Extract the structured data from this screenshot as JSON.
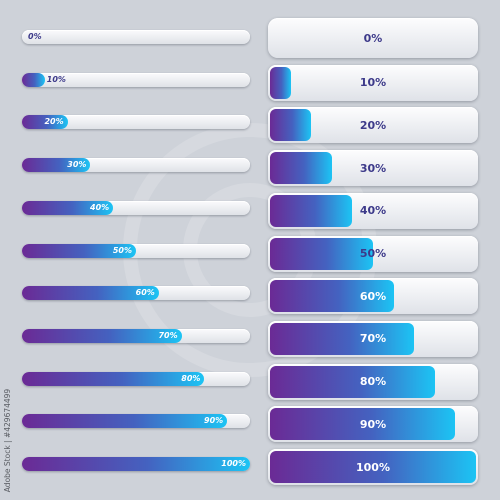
{
  "colors": {
    "background": "#ced2d9",
    "fill_start": "#6b2a95",
    "fill_mid": "#4462c0",
    "fill_end": "#1cc4f4",
    "track": "#e6e8ec",
    "label_dark": "#3d3a8a",
    "label_light": "#ffffff"
  },
  "watermark": {
    "id_text": "Adobe Stock | #429674499"
  },
  "thin_bars": [
    {
      "label": "0%",
      "progress": 0
    },
    {
      "label": "10%",
      "progress": 10
    },
    {
      "label": "20%",
      "progress": 20
    },
    {
      "label": "30%",
      "progress": 30
    },
    {
      "label": "40%",
      "progress": 40
    },
    {
      "label": "50%",
      "progress": 50
    },
    {
      "label": "60%",
      "progress": 60
    },
    {
      "label": "70%",
      "progress": 70
    },
    {
      "label": "80%",
      "progress": 80
    },
    {
      "label": "90%",
      "progress": 90
    },
    {
      "label": "100%",
      "progress": 100
    }
  ],
  "thick_bars": [
    {
      "label": "0%",
      "progress": 0
    },
    {
      "label": "10%",
      "progress": 10
    },
    {
      "label": "20%",
      "progress": 20
    },
    {
      "label": "30%",
      "progress": 30
    },
    {
      "label": "40%",
      "progress": 40
    },
    {
      "label": "50%",
      "progress": 50
    },
    {
      "label": "60%",
      "progress": 60
    },
    {
      "label": "70%",
      "progress": 70
    },
    {
      "label": "80%",
      "progress": 80
    },
    {
      "label": "90%",
      "progress": 90
    },
    {
      "label": "100%",
      "progress": 100
    }
  ]
}
